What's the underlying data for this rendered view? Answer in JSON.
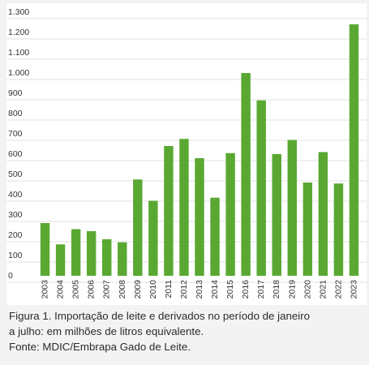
{
  "chart_data": {
    "type": "bar",
    "categories": [
      "2003",
      "2004",
      "2005",
      "2006",
      "2007",
      "2008",
      "2009",
      "2010",
      "2011",
      "2012",
      "2013",
      "2014",
      "2015",
      "2016",
      "2017",
      "2018",
      "2019",
      "2020",
      "2021",
      "2022",
      "2023"
    ],
    "values": [
      260,
      155,
      230,
      220,
      180,
      165,
      475,
      370,
      640,
      675,
      580,
      385,
      605,
      1000,
      865,
      600,
      670,
      460,
      610,
      455,
      1240
    ],
    "ylim": [
      0,
      1300
    ],
    "yticks": [
      0,
      100,
      200,
      300,
      400,
      500,
      600,
      700,
      800,
      900,
      1000,
      1100,
      1200,
      1300
    ],
    "ytick_labels": [
      "0",
      "100",
      "200",
      "300",
      "400",
      "500",
      "600",
      "700",
      "800",
      "900",
      "1.000",
      "1.100",
      "1.200",
      "1.300"
    ],
    "bar_color": "#5aa832",
    "grid": true,
    "title": "",
    "xlabel": "",
    "ylabel": ""
  },
  "caption": {
    "line1": "Figura 1. Importação de leite e derivados no período de janeiro",
    "line2": "a julho: em milhões de litros equivalente.",
    "line3": "Fonte: MDIC/Embrapa Gado de Leite."
  }
}
